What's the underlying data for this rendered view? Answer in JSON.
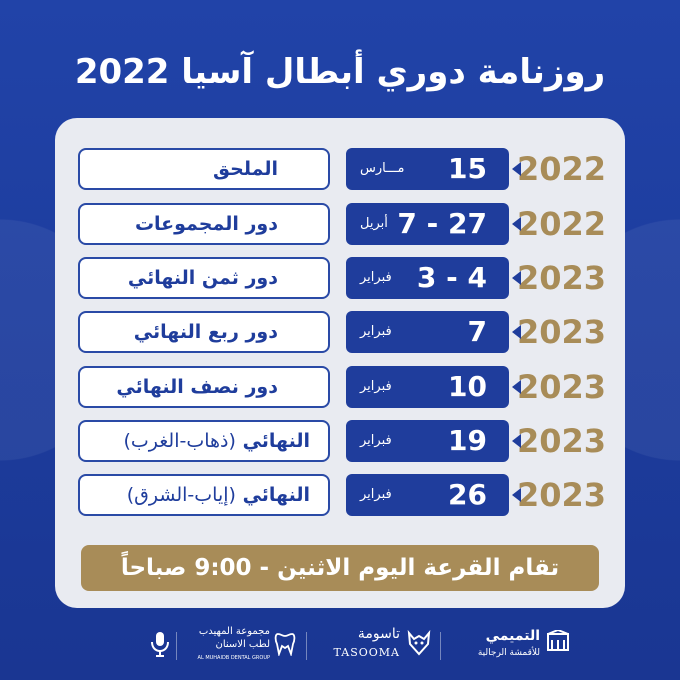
{
  "title": "روزنامة دوري أبطال آسيا 2022",
  "schedule": [
    {
      "year": "2022",
      "date": "15",
      "month": "مـــارس",
      "stage": "الملحق",
      "stage_sub": ""
    },
    {
      "year": "2022",
      "date": "7 - 27",
      "month": "أبريل",
      "stage": "دور المجموعات",
      "stage_sub": ""
    },
    {
      "year": "2023",
      "date": "3 - 4",
      "month": "فبراير",
      "stage": "دور ثمن النهائي",
      "stage_sub": ""
    },
    {
      "year": "2023",
      "date": "7",
      "month": "فبراير",
      "stage": "دور ربع النهائي",
      "stage_sub": ""
    },
    {
      "year": "2023",
      "date": "10",
      "month": "فبراير",
      "stage": "دور نصف النهائي",
      "stage_sub": ""
    },
    {
      "year": "2023",
      "date": "19",
      "month": "فبراير",
      "stage": "النهائي",
      "stage_sub": "(ذهاب-الغرب)"
    },
    {
      "year": "2023",
      "date": "26",
      "month": "فبراير",
      "stage": "النهائي",
      "stage_sub": "(إياب-الشرق)"
    }
  ],
  "banner": "تقام القرعة اليوم الاثنين - 9:00 صباحاً",
  "sponsors": {
    "tamimi_ar": "التميمي",
    "tamimi_sub": "للأقمشة الرجالية",
    "tasooma_ar": "تاسومة",
    "tasooma_en": "TASOOMA",
    "muhaidib_ar": "مجموعة المهيدب",
    "muhaidib_ar2": "لطب الاسنان",
    "muhaidib_en": "AL MUHAIDB DENTAL GROUP"
  },
  "colors": {
    "navy": "#1f3d9c",
    "gold": "#a88c58",
    "panel": "#e9ebf1"
  }
}
